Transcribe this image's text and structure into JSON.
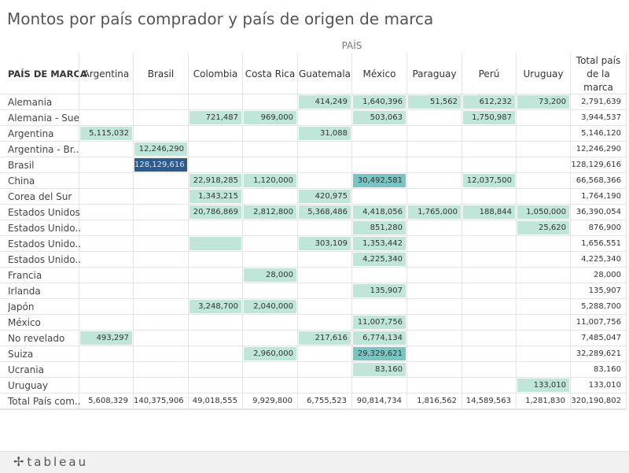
{
  "title": "Montos por país comprador y país de origen de marca",
  "column_group_label": "PAÍS",
  "row_header_label": "PAÍS DE MARCA",
  "footer": {
    "logo_text": "tableau",
    "logo_icon": "tableau-cross-icon"
  },
  "colors": {
    "low": "#bfe6d8",
    "mid": "#7bc4c4",
    "high": "#2f5b8b",
    "high_text": "#d8e6f0"
  },
  "chart_data": {
    "type": "heatmap",
    "title": "Montos por país comprador y país de origen de marca",
    "columns": [
      "Argentina",
      "Brasil",
      "Colombia",
      "Costa Rica",
      "Guatemala",
      "México",
      "Paraguay",
      "Perú",
      "Uruguay"
    ],
    "total_column_label": "Total país de la marca",
    "rows": [
      {
        "label": "Alemania",
        "values": [
          null,
          null,
          null,
          null,
          "414,249",
          "1,640,396",
          "51,562",
          "612,232",
          "73,200"
        ],
        "total": "2,791,639"
      },
      {
        "label": "Alemania - Sue..",
        "values": [
          null,
          null,
          "721,487",
          "969,000",
          null,
          "503,063",
          null,
          "1,750,987",
          null
        ],
        "total": "3,944,537"
      },
      {
        "label": "Argentina",
        "values": [
          "5,115,032",
          null,
          null,
          null,
          "31,088",
          null,
          null,
          null,
          null
        ],
        "total": "5,146,120"
      },
      {
        "label": "Argentina - Br..",
        "values": [
          null,
          "12,246,290",
          null,
          null,
          null,
          null,
          null,
          null,
          null
        ],
        "total": "12,246,290"
      },
      {
        "label": "Brasil",
        "values": [
          null,
          "128,129,616",
          null,
          null,
          null,
          null,
          null,
          null,
          null
        ],
        "total": "128,129,616"
      },
      {
        "label": "China",
        "values": [
          null,
          null,
          "22,918,285",
          "1,120,000",
          null,
          "30,492,581",
          null,
          "12,037,500",
          null
        ],
        "total": "66,568,366"
      },
      {
        "label": "Corea del Sur",
        "values": [
          null,
          null,
          "1,343,215",
          null,
          "420,975",
          null,
          null,
          null,
          null
        ],
        "total": "1,764,190"
      },
      {
        "label": "Estados Unidos",
        "values": [
          null,
          null,
          "20,786,869",
          "2,812,800",
          "5,368,486",
          "4,418,056",
          "1,765,000",
          "188,844",
          "1,050,000"
        ],
        "total": "36,390,054"
      },
      {
        "label": "Estados Unido..",
        "values": [
          null,
          null,
          null,
          null,
          null,
          "851,280",
          null,
          null,
          "25,620"
        ],
        "total": "876,900"
      },
      {
        "label": "Estados Unido..",
        "values": [
          null,
          null,
          "",
          null,
          "303,109",
          "1,353,442",
          null,
          null,
          null
        ],
        "total": "1,656,551"
      },
      {
        "label": "Estados Unido..",
        "values": [
          null,
          null,
          null,
          null,
          null,
          "4,225,340",
          null,
          null,
          null
        ],
        "total": "4,225,340"
      },
      {
        "label": "Francia",
        "values": [
          null,
          null,
          null,
          "28,000",
          null,
          null,
          null,
          null,
          null
        ],
        "total": "28,000"
      },
      {
        "label": "Irlanda",
        "values": [
          null,
          null,
          null,
          null,
          null,
          "135,907",
          null,
          null,
          null
        ],
        "total": "135,907"
      },
      {
        "label": "Japón",
        "values": [
          null,
          null,
          "3,248,700",
          "2,040,000",
          null,
          null,
          null,
          null,
          null
        ],
        "total": "5,288,700"
      },
      {
        "label": "México",
        "values": [
          null,
          null,
          null,
          null,
          null,
          "11,007,756",
          null,
          null,
          null
        ],
        "total": "11,007,756"
      },
      {
        "label": "No revelado",
        "values": [
          "493,297",
          null,
          null,
          null,
          "217,616",
          "6,774,134",
          null,
          null,
          null
        ],
        "total": "7,485,047"
      },
      {
        "label": "Suiza",
        "values": [
          null,
          null,
          null,
          "2,960,000",
          null,
          "29,329,621",
          null,
          null,
          null
        ],
        "total": "32,289,621"
      },
      {
        "label": "Ucrania",
        "values": [
          null,
          null,
          null,
          null,
          null,
          "83,160",
          null,
          null,
          null
        ],
        "total": "83,160"
      },
      {
        "label": "Uruguay",
        "values": [
          null,
          null,
          null,
          null,
          null,
          null,
          null,
          null,
          "133,010"
        ],
        "total": "133,010"
      }
    ],
    "total_row": {
      "label": "Total País com..",
      "values": [
        "5,608,329",
        "140,375,906",
        "49,018,555",
        "9,929,800",
        "6,755,523",
        "90,814,734",
        "1,816,562",
        "14,589,563",
        "1,281,830"
      ],
      "total": "320,190,802"
    }
  }
}
